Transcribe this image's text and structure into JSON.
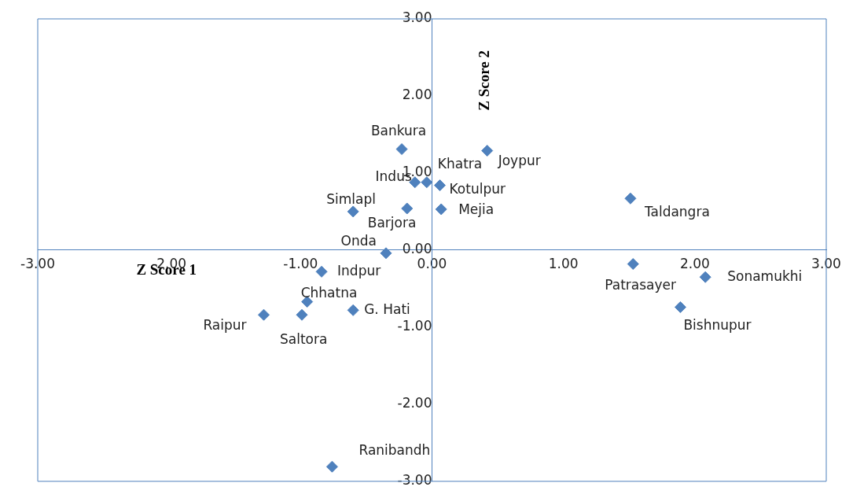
{
  "chart_data": {
    "type": "scatter",
    "xlabel": "Z Score 1",
    "ylabel": "Z Score 2",
    "marker": "diamond",
    "grid": false,
    "legend": false,
    "xlim": [
      -3,
      3
    ],
    "ylim": [
      -3,
      3
    ],
    "xticks": [
      {
        "value": -3,
        "label": "-3.00"
      },
      {
        "value": -2,
        "label": "-2.00"
      },
      {
        "value": -1,
        "label": "-1.00"
      },
      {
        "value": 0,
        "label": "0.00"
      },
      {
        "value": 1,
        "label": "1.00"
      },
      {
        "value": 2,
        "label": "2.00"
      },
      {
        "value": 3,
        "label": "3.00"
      }
    ],
    "yticks": [
      {
        "value": -3,
        "label": "-3.00"
      },
      {
        "value": -2,
        "label": "-2.00"
      },
      {
        "value": -1,
        "label": "-1.00"
      },
      {
        "value": 0,
        "label": "0.00"
      },
      {
        "value": 1,
        "label": "1.00"
      },
      {
        "value": 2,
        "label": "2.00"
      },
      {
        "value": 3,
        "label": "3.00"
      }
    ],
    "series": [
      {
        "color": "#4f81bd",
        "x": [
          -0.23,
          0.42,
          -0.13,
          -0.04,
          0.06,
          1.51,
          -0.6,
          -0.19,
          0.07,
          -0.35,
          1.53,
          2.08,
          -0.84,
          -0.95,
          1.89,
          -0.6,
          -1.28,
          -0.99,
          -0.76
        ],
        "values": [
          1.31,
          1.29,
          0.88,
          0.88,
          0.84,
          0.67,
          0.5,
          0.54,
          0.53,
          -0.04,
          -0.18,
          -0.35,
          -0.28,
          -0.67,
          -0.74,
          -0.78,
          -0.84,
          -0.84,
          -2.81
        ],
        "value_labels": [
          "Bankura",
          "Joypur",
          "Indus",
          "Khatra",
          "Kotulpur",
          "Taldangra",
          "Simlapl",
          "Barjora",
          "Mejia",
          "Onda",
          "Patrasayer",
          "Sonamukhi",
          "Indpur",
          "Chhatna",
          "Bishnupur",
          "G. Hati",
          "Raipur",
          "Saltora",
          "Ranibandh"
        ]
      }
    ]
  }
}
